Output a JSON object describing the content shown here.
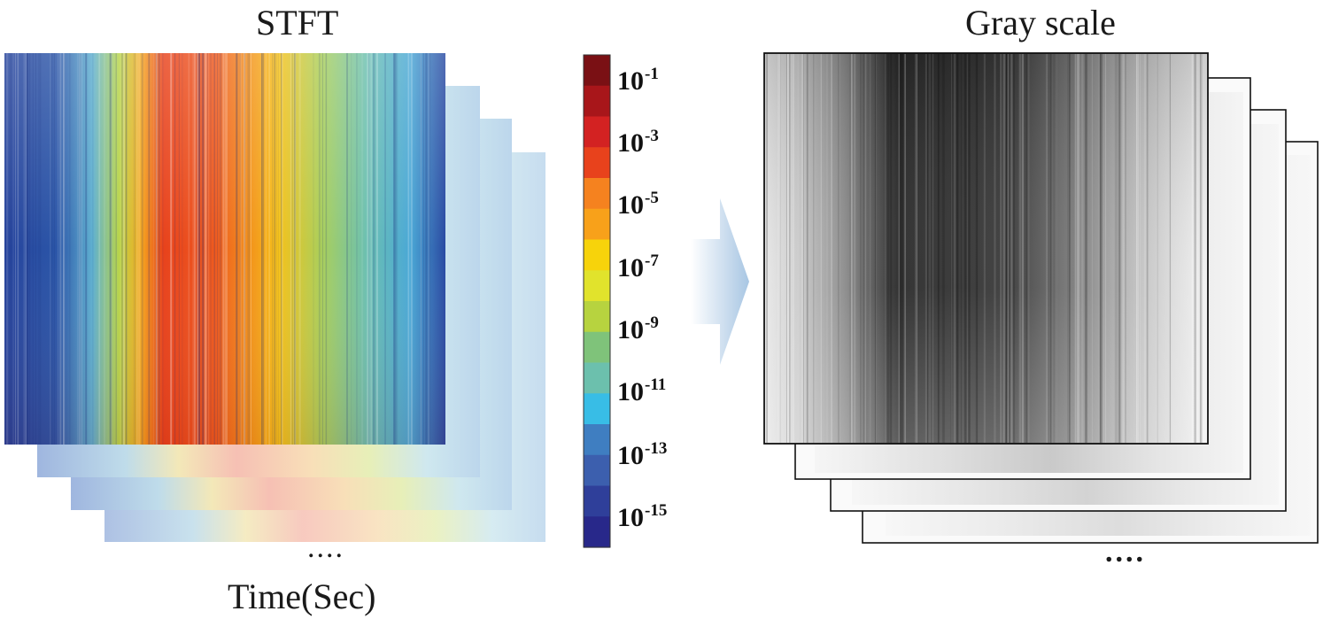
{
  "left_panel": {
    "title": "STFT",
    "x_axis_label": "Time(Sec)",
    "continuation": "....",
    "colormap": "jet"
  },
  "colorbar": {
    "tick_labels": [
      {
        "base": "10",
        "exp": "-1"
      },
      {
        "base": "10",
        "exp": "-3"
      },
      {
        "base": "10",
        "exp": "-5"
      },
      {
        "base": "10",
        "exp": "-7"
      },
      {
        "base": "10",
        "exp": "-9"
      },
      {
        "base": "10",
        "exp": "-11"
      },
      {
        "base": "10",
        "exp": "-13"
      },
      {
        "base": "10",
        "exp": "-15"
      }
    ],
    "colors_top_to_bottom": [
      "#7a1014",
      "#a8161a",
      "#d32222",
      "#e8421c",
      "#f5821f",
      "#f8a11a",
      "#f7d30b",
      "#e1e32c",
      "#b7d33f",
      "#7fc37a",
      "#6cc0ad",
      "#38bde6",
      "#3f7ec1",
      "#3c5fae",
      "#2f3f9a",
      "#28288a"
    ]
  },
  "arrow": {
    "color": "#a8c6e3"
  },
  "right_panel": {
    "title": "Gray scale",
    "continuation": "....",
    "colormap": "grayscale"
  }
}
